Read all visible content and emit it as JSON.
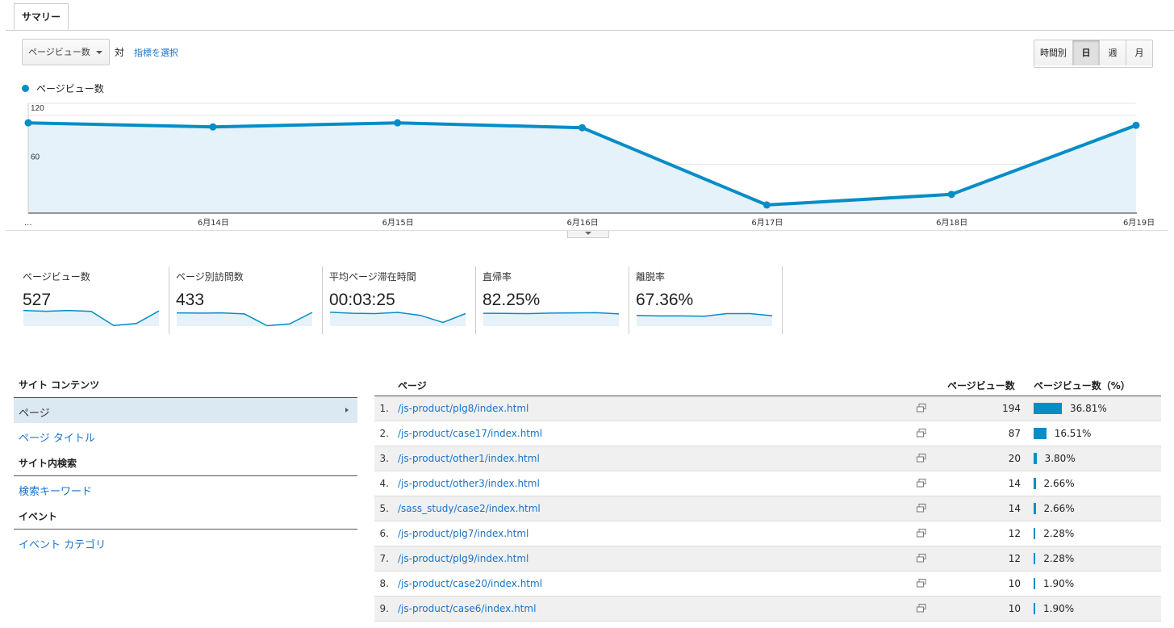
{
  "tab": "サマリー",
  "controls": {
    "metric_select": "ページビュー数",
    "vs": "対",
    "pick_metric": "指標を選択",
    "granularity": [
      "時間別",
      "日",
      "週",
      "月"
    ],
    "granularity_active": "日"
  },
  "chart_data": {
    "type": "area",
    "series": [
      {
        "name": "ページビュー数",
        "values": [
          111,
          106,
          111,
          105,
          10,
          23,
          108
        ]
      }
    ],
    "x": [
      "...",
      "6月14日",
      "6月15日",
      "6月16日",
      "6月17日",
      "6月18日",
      "6月19日"
    ],
    "yticks": [
      120,
      60
    ],
    "ylim": [
      0,
      135
    ],
    "color": "#058dc7",
    "fill": "#e5f2f9"
  },
  "metrics": [
    {
      "label": "ページビュー数",
      "value": "527",
      "spark": [
        111,
        106,
        111,
        105,
        10,
        23,
        108
      ]
    },
    {
      "label": "ページ別訪問数",
      "value": "433",
      "spark": [
        95,
        93,
        95,
        88,
        8,
        20,
        98
      ]
    },
    {
      "label": "平均ページ滞在時間",
      "value": "00:03:25",
      "spark": [
        100,
        92,
        90,
        98,
        78,
        30,
        90
      ]
    },
    {
      "label": "直帰率",
      "value": "82.25%",
      "spark": [
        92,
        91,
        90,
        93,
        95,
        96,
        88
      ]
    },
    {
      "label": "離脱率",
      "value": "67.36%",
      "spark": [
        78,
        74,
        74,
        72,
        90,
        90,
        76
      ]
    }
  ],
  "sidebar": {
    "sections": [
      {
        "heading": "サイト コンテンツ",
        "items": [
          "ページ",
          "ページ タイトル"
        ]
      },
      {
        "heading": "サイト内検索",
        "items": [
          "検索キーワード"
        ]
      },
      {
        "heading": "イベント",
        "items": [
          "イベント カテゴリ"
        ]
      }
    ],
    "selected": "ページ"
  },
  "table": {
    "headers": {
      "page": "ページ",
      "pv": "ページビュー数",
      "pct": "ページビュー数（%）"
    },
    "rows": [
      {
        "idx": "1.",
        "url": "/js-product/plg8/index.html",
        "pv": "194",
        "pct": "36.81%",
        "share": 36.81
      },
      {
        "idx": "2.",
        "url": "/js-product/case17/index.html",
        "pv": "87",
        "pct": "16.51%",
        "share": 16.51
      },
      {
        "idx": "3.",
        "url": "/js-product/other1/index.html",
        "pv": "20",
        "pct": "3.80%",
        "share": 3.8
      },
      {
        "idx": "4.",
        "url": "/js-product/other3/index.html",
        "pv": "14",
        "pct": "2.66%",
        "share": 2.66
      },
      {
        "idx": "5.",
        "url": "/sass_study/case2/index.html",
        "pv": "14",
        "pct": "2.66%",
        "share": 2.66
      },
      {
        "idx": "6.",
        "url": "/js-product/plg7/index.html",
        "pv": "12",
        "pct": "2.28%",
        "share": 2.28
      },
      {
        "idx": "7.",
        "url": "/js-product/plg9/index.html",
        "pv": "12",
        "pct": "2.28%",
        "share": 2.28
      },
      {
        "idx": "8.",
        "url": "/js-product/case20/index.html",
        "pv": "10",
        "pct": "1.90%",
        "share": 1.9
      },
      {
        "idx": "9.",
        "url": "/js-product/case6/index.html",
        "pv": "10",
        "pct": "1.90%",
        "share": 1.9
      }
    ]
  }
}
